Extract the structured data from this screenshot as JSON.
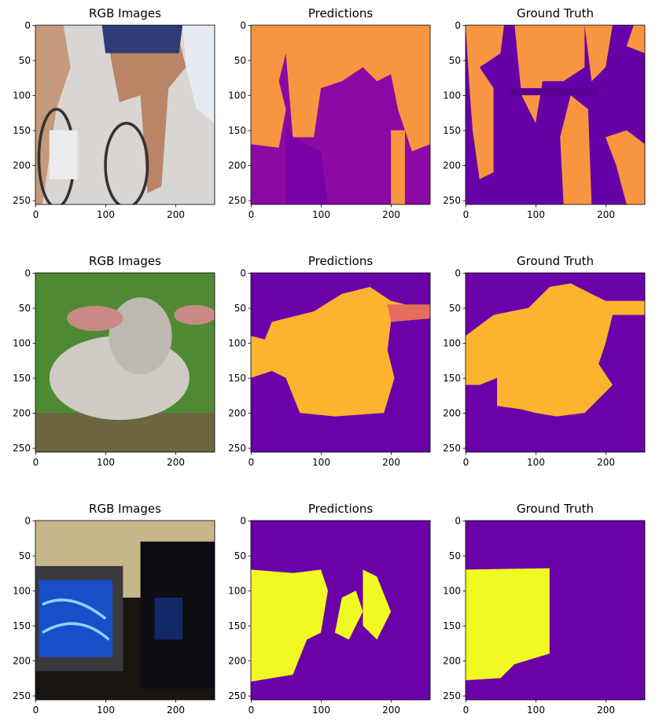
{
  "chart_data": [
    {
      "type": "image",
      "title": "RGB Images",
      "xlim": [
        -0.5,
        255.5
      ],
      "ylim": [
        255.5,
        -0.5
      ],
      "xticks": [
        0,
        100,
        200
      ],
      "yticks": [
        0,
        50,
        100,
        150,
        200,
        250
      ]
    },
    {
      "type": "image",
      "title": "Predictions",
      "xlim": [
        -0.5,
        255.5
      ],
      "ylim": [
        255.5,
        -0.5
      ],
      "xticks": [
        0,
        100,
        200
      ],
      "yticks": [
        0,
        50,
        100,
        150,
        200,
        250
      ]
    },
    {
      "type": "image",
      "title": "Ground Truth",
      "xlim": [
        -0.5,
        255.5
      ],
      "ylim": [
        255.5,
        -0.5
      ],
      "xticks": [
        0,
        100,
        200
      ],
      "yticks": [
        0,
        50,
        100,
        150,
        200,
        250
      ]
    },
    {
      "type": "image",
      "title": "RGB Images",
      "xlim": [
        -0.5,
        255.5
      ],
      "ylim": [
        255.5,
        -0.5
      ],
      "xticks": [
        0,
        100,
        200
      ],
      "yticks": [
        0,
        50,
        100,
        150,
        200,
        250
      ]
    },
    {
      "type": "image",
      "title": "Predictions",
      "xlim": [
        -0.5,
        255.5
      ],
      "ylim": [
        255.5,
        -0.5
      ],
      "xticks": [
        0,
        100,
        200
      ],
      "yticks": [
        0,
        50,
        100,
        150,
        200,
        250
      ]
    },
    {
      "type": "image",
      "title": "Ground Truth",
      "xlim": [
        -0.5,
        255.5
      ],
      "ylim": [
        255.5,
        -0.5
      ],
      "xticks": [
        0,
        100,
        200
      ],
      "yticks": [
        0,
        50,
        100,
        150,
        200,
        250
      ]
    },
    {
      "type": "image",
      "title": "RGB Images",
      "xlim": [
        -0.5,
        255.5
      ],
      "ylim": [
        255.5,
        -0.5
      ],
      "xticks": [
        0,
        100,
        200
      ],
      "yticks": [
        0,
        50,
        100,
        150,
        200,
        250
      ]
    },
    {
      "type": "image",
      "title": "Predictions",
      "xlim": [
        -0.5,
        255.5
      ],
      "ylim": [
        255.5,
        -0.5
      ],
      "xticks": [
        0,
        100,
        200
      ],
      "yticks": [
        0,
        50,
        100,
        150,
        200,
        250
      ]
    },
    {
      "type": "image",
      "title": "Ground Truth",
      "xlim": [
        -0.5,
        255.5
      ],
      "ylim": [
        255.5,
        -0.5
      ],
      "xticks": [
        0,
        100,
        200
      ],
      "yticks": [
        0,
        50,
        100,
        150,
        200,
        250
      ]
    }
  ]
}
